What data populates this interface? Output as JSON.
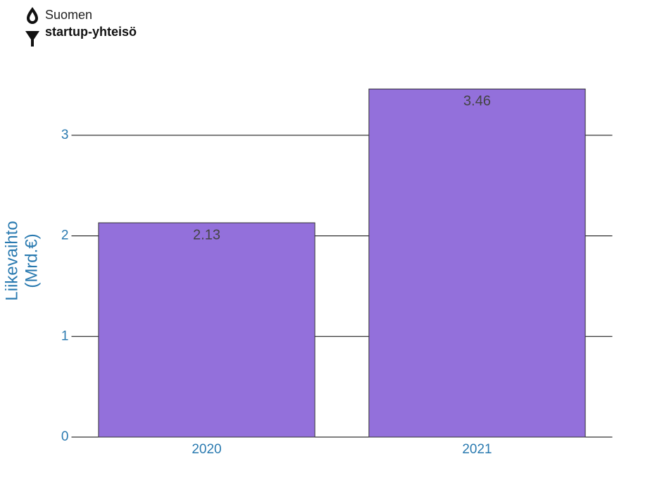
{
  "logo": {
    "line1": "Suomen",
    "line2": "startup-yhteisö"
  },
  "chart_data": {
    "type": "bar",
    "ylabel": [
      "Liikevaihto",
      "(Mrd.€)"
    ],
    "categories": [
      "2020",
      "2021"
    ],
    "values": [
      2.13,
      3.46
    ],
    "color": "#9370db",
    "ylim": [
      0,
      3.5
    ],
    "yticks": [
      0,
      1,
      2,
      3
    ],
    "grid": true,
    "value_labels_shown": true
  }
}
